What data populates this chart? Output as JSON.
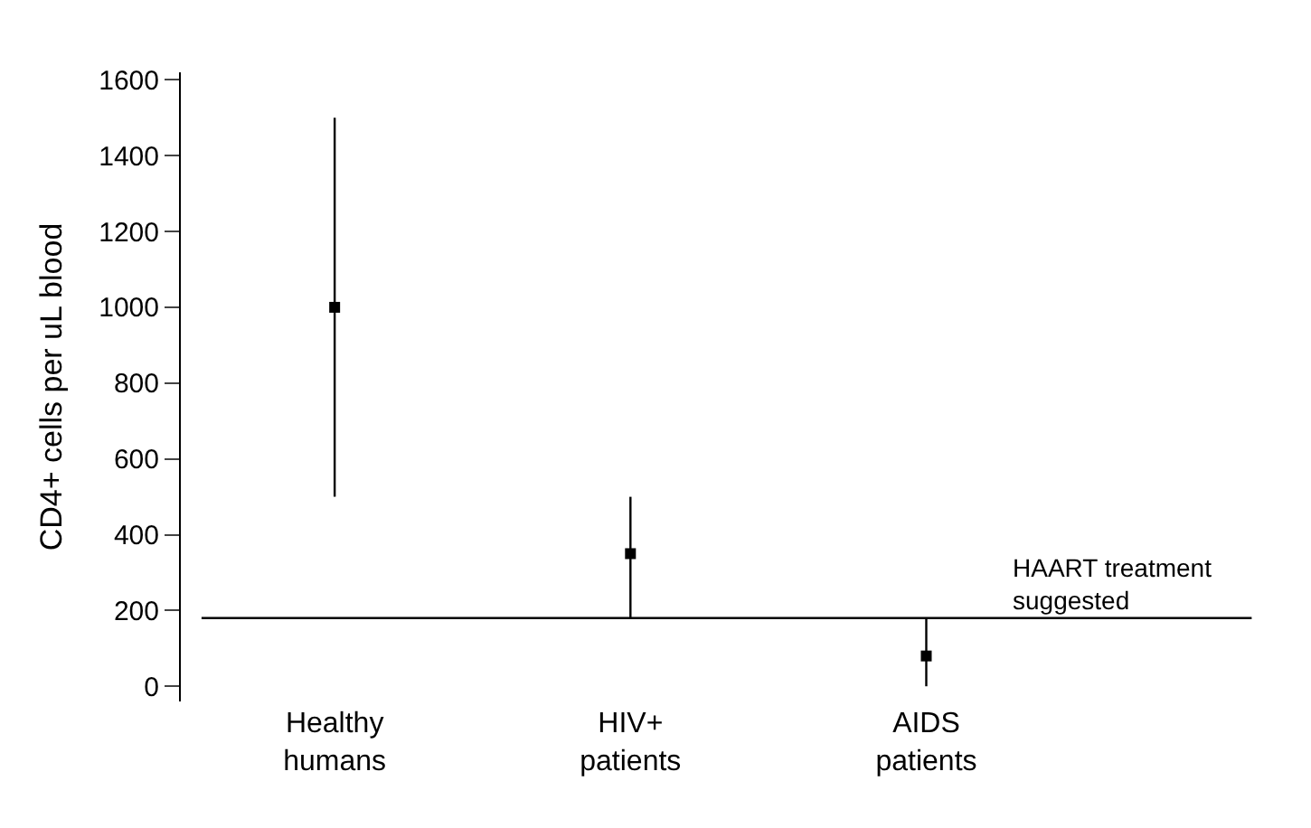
{
  "chart_data": {
    "type": "scatter",
    "ylabel": "CD4+ cells per uL blood",
    "categories": [
      "Healthy\nhumans",
      "HIV+\npatients",
      "AIDS\npatients"
    ],
    "series": [
      {
        "color": "#000000",
        "values": [
          1000,
          350,
          80
        ],
        "errors": [
          [
            500,
            1500
          ],
          [
            180,
            500
          ],
          [
            0,
            180
          ]
        ]
      }
    ],
    "ylim": [
      -40,
      1620
    ],
    "yticks": [
      0,
      200,
      400,
      600,
      800,
      1000,
      1200,
      1400,
      1600
    ],
    "ref_lines": [
      {
        "axis": "y",
        "value": 180,
        "label": "HAART treatment\nsuggested",
        "color": "#000000"
      }
    ],
    "marker": "square"
  }
}
